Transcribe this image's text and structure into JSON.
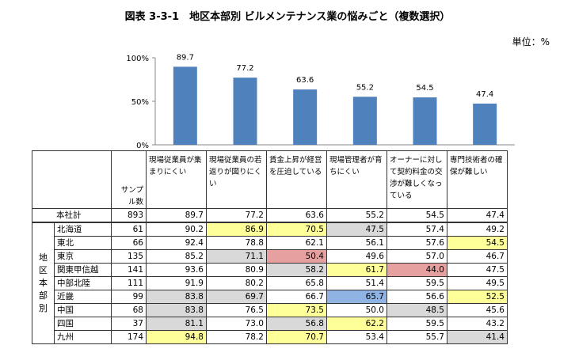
{
  "title": "図表 3-3-1　地区本部別 ビルメンテナンス業の悩みごと（複数選択）",
  "unit": "単位：%",
  "chart_data": {
    "type": "bar",
    "categories": [
      "現場従業員が集まりにくい",
      "現場従業員の若返りが図りにくい",
      "賃金上昇が経営を圧迫している",
      "現場管理者が育ちにくい",
      "オーナーに対して契約料金の交渉が難しくなっている",
      "専門技術者の確保が難しい"
    ],
    "values": [
      89.7,
      77.2,
      63.6,
      55.2,
      54.5,
      47.4
    ],
    "ylim": [
      0,
      100
    ],
    "yticks": [
      "0%",
      "50%",
      "100%"
    ],
    "bar_color": "#4f81bd"
  },
  "table": {
    "group_label": "地区本部別",
    "n_header": "サンプル数",
    "columns": [
      "現場従業員が集まりにくい",
      "現場従業員の若返りが図りにくい",
      "賃金上昇が経営を圧迫している",
      "現場管理者が育ちにくい",
      "オーナーに対して契約料金の交渉が難しくなっている",
      "専門技術者の確保が難しい"
    ],
    "total": {
      "label": "本社計",
      "n": "893",
      "values": [
        "89.7",
        "77.2",
        "63.6",
        "55.2",
        "54.5",
        "47.4"
      ]
    },
    "rows": [
      {
        "label": "北海道",
        "n": "61",
        "values": [
          "90.2",
          "86.9",
          "70.5",
          "47.5",
          "57.4",
          "49.2"
        ],
        "hl": [
          "",
          "yellow",
          "yellow",
          "gray",
          "",
          ""
        ]
      },
      {
        "label": "東北",
        "n": "66",
        "values": [
          "92.4",
          "78.8",
          "62.1",
          "56.1",
          "57.6",
          "54.5"
        ],
        "hl": [
          "",
          "",
          "",
          "",
          "",
          "yellow"
        ]
      },
      {
        "label": "東京",
        "n": "135",
        "values": [
          "85.2",
          "71.1",
          "50.4",
          "49.6",
          "57.0",
          "46.7"
        ],
        "hl": [
          "",
          "gray",
          "red",
          "",
          "",
          ""
        ]
      },
      {
        "label": "関東甲信越",
        "n": "141",
        "values": [
          "93.6",
          "80.9",
          "58.2",
          "61.7",
          "44.0",
          "47.5"
        ],
        "hl": [
          "",
          "",
          "gray",
          "yellow",
          "red",
          ""
        ]
      },
      {
        "label": "中部北陸",
        "n": "111",
        "values": [
          "91.9",
          "80.2",
          "65.8",
          "51.4",
          "59.5",
          "49.5"
        ],
        "hl": [
          "",
          "",
          "",
          "",
          "",
          ""
        ]
      },
      {
        "label": "近畿",
        "n": "99",
        "values": [
          "83.8",
          "69.7",
          "66.7",
          "65.7",
          "56.6",
          "52.5"
        ],
        "hl": [
          "gray",
          "gray",
          "",
          "blue",
          "",
          "yellow"
        ]
      },
      {
        "label": "中国",
        "n": "68",
        "values": [
          "83.8",
          "76.5",
          "73.5",
          "50.0",
          "48.5",
          "45.6"
        ],
        "hl": [
          "gray",
          "",
          "yellow",
          "",
          "gray",
          ""
        ]
      },
      {
        "label": "四国",
        "n": "37",
        "values": [
          "81.1",
          "73.0",
          "56.8",
          "62.2",
          "59.5",
          "43.2"
        ],
        "hl": [
          "gray",
          "",
          "gray",
          "yellow",
          "",
          ""
        ]
      },
      {
        "label": "九州",
        "n": "174",
        "values": [
          "94.8",
          "78.2",
          "70.7",
          "53.4",
          "55.7",
          "41.4"
        ],
        "hl": [
          "yellow",
          "",
          "yellow",
          "",
          "",
          "gray"
        ]
      }
    ]
  }
}
